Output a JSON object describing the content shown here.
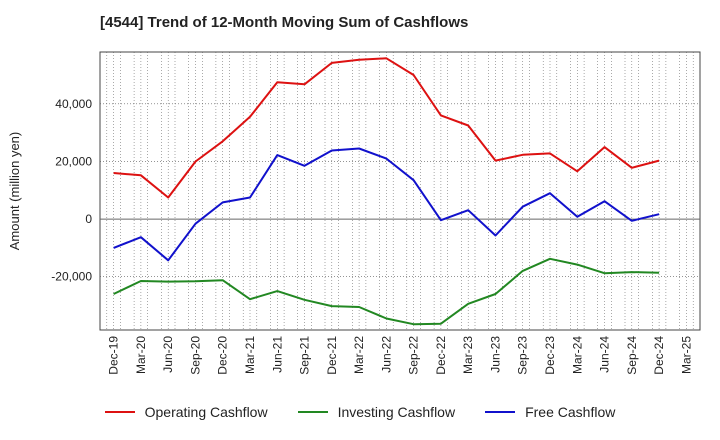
{
  "title": "[4544]  Trend of 12-Month Moving Sum of Cashflows",
  "chart_data": {
    "type": "line",
    "title": "[4544]  Trend of 12-Month Moving Sum of Cashflows",
    "xlabel": "",
    "ylabel": "Amount (million yen)",
    "categories": [
      "Dec-19",
      "Mar-20",
      "Jun-20",
      "Sep-20",
      "Dec-20",
      "Mar-21",
      "Jun-21",
      "Sep-21",
      "Dec-21",
      "Mar-22",
      "Jun-22",
      "Sep-22",
      "Dec-22",
      "Mar-23",
      "Jun-23",
      "Sep-23",
      "Dec-23",
      "Mar-24",
      "Jun-24",
      "Sep-24",
      "Dec-24",
      "Mar-25"
    ],
    "y_ticks": [
      -20000,
      0,
      20000,
      40000
    ],
    "y_tick_labels": [
      "-20,000",
      "0",
      "20,000",
      "40,000"
    ],
    "ylim": [
      -38500,
      58000
    ],
    "grid": true,
    "legend_position": "bottom",
    "series": [
      {
        "name": "Operating Cashflow",
        "color": "#dd1111",
        "values": [
          16000,
          15200,
          7500,
          20000,
          27000,
          35500,
          47500,
          46800,
          54200,
          55300,
          55800,
          50000,
          36000,
          32500,
          20300,
          22300,
          22800,
          16600,
          25000,
          17800,
          20300,
          null
        ]
      },
      {
        "name": "Investing Cashflow",
        "color": "#228822",
        "values": [
          -26000,
          -21500,
          -21700,
          -21600,
          -21200,
          -27800,
          -25000,
          -28000,
          -30200,
          -30500,
          -34500,
          -36500,
          -36300,
          -29400,
          -26000,
          -18000,
          -13800,
          -15800,
          -18800,
          -18400,
          -18600,
          null
        ]
      },
      {
        "name": "Free Cashflow",
        "color": "#1111cc",
        "values": [
          -10000,
          -6300,
          -14300,
          -1600,
          5800,
          7500,
          22200,
          18500,
          23800,
          24500,
          21000,
          13500,
          -400,
          3100,
          -5700,
          4300,
          9000,
          800,
          6200,
          -600,
          1700,
          null
        ]
      }
    ]
  }
}
